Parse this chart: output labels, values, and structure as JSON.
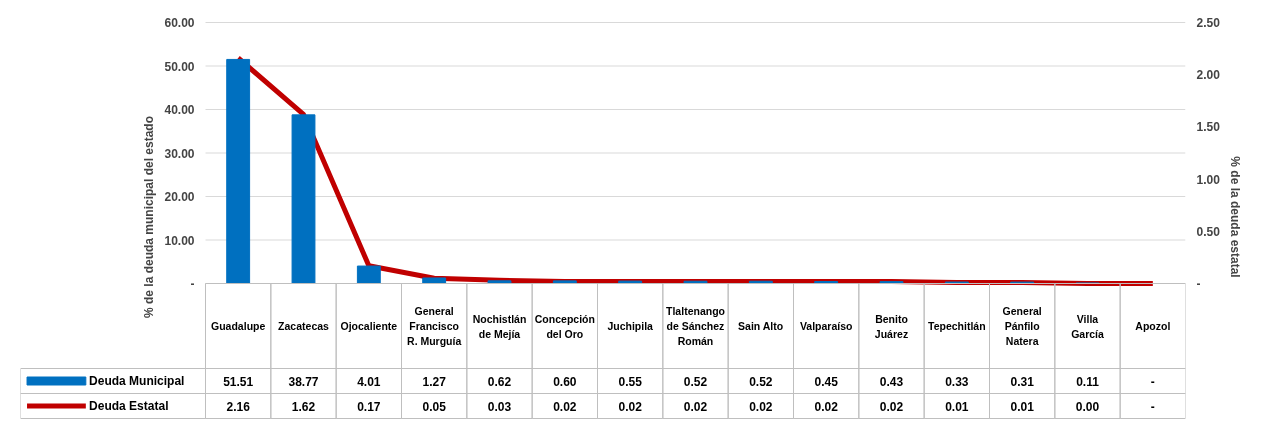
{
  "chart_data": {
    "type": "bar",
    "categories": [
      "Guadalupe",
      "Zacatecas",
      "Ojocaliente",
      "General Francisco R. Murguía",
      "Nochistlán de Mejía",
      "Concepción del Oro",
      "Juchipila",
      "Tlaltenango de Sánchez Román",
      "Sain Alto",
      "Valparaíso",
      "Benito Juárez",
      "Tepechitlán",
      "General Pánfilo Natera",
      "Villa García",
      "Apozol"
    ],
    "ylabel": "% de la deuda municipal del estado",
    "y2label": "% de la deuda estatal",
    "ylim": [
      0,
      60
    ],
    "yticks": [
      {
        "value": 0,
        "label": "-"
      },
      {
        "value": 10,
        "label": "10.00"
      },
      {
        "value": 20,
        "label": "20.00"
      },
      {
        "value": 30,
        "label": "30.00"
      },
      {
        "value": 40,
        "label": "40.00"
      },
      {
        "value": 50,
        "label": "50.00"
      },
      {
        "value": 60,
        "label": "60.00"
      }
    ],
    "y2lim": [
      0,
      2.5
    ],
    "y2ticks": [
      {
        "value": 0,
        "label": "-"
      },
      {
        "value": 0.5,
        "label": "0.50"
      },
      {
        "value": 1,
        "label": "1.00"
      },
      {
        "value": 1.5,
        "label": "1.50"
      },
      {
        "value": 2,
        "label": "2.00"
      },
      {
        "value": 2.5,
        "label": "2.50"
      }
    ],
    "grid": "y",
    "legend": "bottom",
    "series": [
      {
        "name": "Deuda Municipal",
        "color": "#0070c0",
        "values": [
          51.51,
          38.77,
          4.01,
          1.27,
          0.62,
          0.6,
          0.55,
          0.52,
          0.52,
          0.45,
          0.43,
          0.33,
          0.31,
          0.11,
          0
        ],
        "value_labels": [
          "51.51",
          "38.77",
          "4.01",
          "1.27",
          "0.62",
          "0.60",
          "0.55",
          "0.52",
          "0.52",
          "0.45",
          "0.43",
          "0.33",
          "0.31",
          "0.11",
          "-"
        ]
      },
      {
        "name": "Deuda Estatal",
        "type": "line",
        "axis": "y2",
        "color": "#c00000",
        "values": [
          2.16,
          1.62,
          0.17,
          0.05,
          0.03,
          0.02,
          0.02,
          0.02,
          0.02,
          0.02,
          0.02,
          0.01,
          0.01,
          0.0,
          0
        ],
        "value_labels": [
          "2.16",
          "1.62",
          "0.17",
          "0.05",
          "0.03",
          "0.02",
          "0.02",
          "0.02",
          "0.02",
          "0.02",
          "0.02",
          "0.01",
          "0.01",
          "0.00",
          "-"
        ]
      }
    ]
  }
}
